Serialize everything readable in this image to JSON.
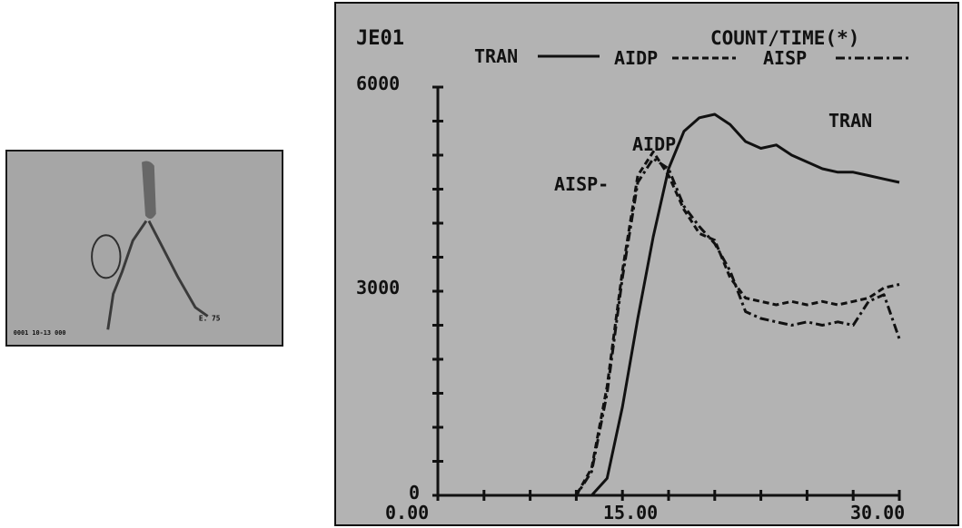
{
  "scan_panel": {
    "footer_label": "0001 10-13 000",
    "marker_label": "E. 75"
  },
  "chart_data": {
    "type": "line",
    "title": "JE01",
    "subtitle": "COUNT/TIME(*)",
    "x": [
      0,
      2,
      4,
      6,
      8,
      9,
      10,
      11,
      12,
      13,
      14,
      15,
      16,
      17,
      18,
      19,
      20,
      21,
      22,
      23,
      24,
      25,
      26,
      27,
      28,
      29,
      30
    ],
    "series": [
      {
        "name": "TRAN",
        "style": "solid",
        "values": [
          0,
          0,
          0,
          0,
          0,
          0,
          0,
          250,
          1300,
          2600,
          3800,
          4800,
          5350,
          5550,
          5600,
          5450,
          5200,
          5100,
          5150,
          5000,
          4900,
          4800,
          4750,
          4750,
          4700,
          4650,
          4600
        ]
      },
      {
        "name": "AIDP",
        "style": "dashed",
        "values": [
          0,
          0,
          0,
          0,
          0,
          0,
          400,
          1600,
          3300,
          4700,
          5050,
          4700,
          4200,
          3850,
          3750,
          3200,
          2900,
          2850,
          2800,
          2850,
          2800,
          2850,
          2800,
          2850,
          2900,
          3050,
          3100
        ]
      },
      {
        "name": "AISP",
        "style": "dash-dot",
        "values": [
          0,
          0,
          0,
          0,
          0,
          0,
          350,
          1500,
          3200,
          4600,
          4950,
          4800,
          4250,
          3950,
          3700,
          3300,
          2700,
          2600,
          2550,
          2500,
          2550,
          2500,
          2550,
          2500,
          2850,
          2950,
          2300
        ]
      }
    ],
    "xlim": [
      0,
      30
    ],
    "ylim": [
      0,
      6000
    ],
    "x_tick_labels": [
      "0.00",
      "15.00",
      "30.00"
    ],
    "y_tick_labels": [
      "0",
      "3000",
      "6000"
    ],
    "grid": false,
    "legend": {
      "position": "top",
      "items": [
        "TRAN",
        "AIDP",
        "AISP"
      ]
    },
    "annotations": [
      "AIDP",
      "TRAN",
      "AISP-"
    ]
  }
}
